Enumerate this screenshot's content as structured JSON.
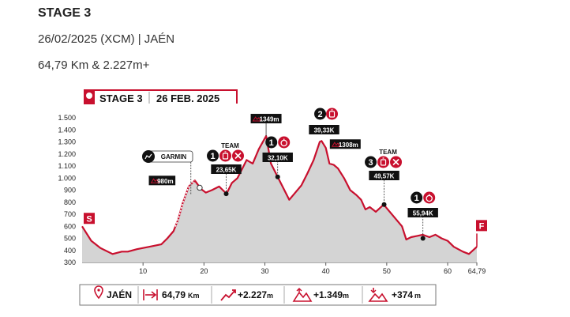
{
  "header": {
    "title": "STAGE 3",
    "date_line": "26/02/2025 (XCM) | JAÉN",
    "summary_line": "64,79 Km & 2.227m+"
  },
  "colors": {
    "accent": "#c8102e",
    "fill": "#d4d4d4",
    "dark": "#111111"
  },
  "chart_data": {
    "type": "area",
    "banner": {
      "stage": "STAGE 3",
      "date": "26 FEB. 2025"
    },
    "xlim": [
      0,
      64.79
    ],
    "ylim": [
      300,
      1500
    ],
    "x_ticks": [
      "10",
      "20",
      "30",
      "40",
      "50",
      "60",
      "64,79"
    ],
    "x_tick_values": [
      10,
      20,
      30,
      40,
      50,
      60,
      64.79
    ],
    "y_ticks": [
      "300",
      "400",
      "500",
      "600",
      "700",
      "800",
      "900",
      "1.000",
      "1.100",
      "1.200",
      "1.300",
      "1.400",
      "1.500"
    ],
    "y_tick_values": [
      300,
      400,
      500,
      600,
      700,
      800,
      900,
      1000,
      1100,
      1200,
      1300,
      1400,
      1500
    ],
    "profile": {
      "x": [
        0,
        1.5,
        3,
        5,
        6.5,
        7.5,
        9,
        11,
        13,
        14,
        15,
        15.8,
        16.5,
        17.5,
        18.5,
        19.5,
        20.3,
        21.3,
        22.5,
        23.7,
        24.6,
        25.5,
        26.3,
        27,
        28,
        29,
        30.2,
        31,
        32.1,
        33.2,
        34,
        35,
        36,
        37,
        38,
        39,
        39.3,
        40,
        40.6,
        41.3,
        42,
        43,
        44,
        45,
        45.8,
        46.5,
        47.2,
        48.2,
        49.5,
        50.5,
        52.5,
        53.2,
        54,
        55,
        55.9,
        57,
        58,
        59,
        60,
        61,
        62.5,
        63.5,
        64.79
      ],
      "y": [
        600,
        480,
        420,
        370,
        390,
        390,
        410,
        430,
        450,
        500,
        560,
        660,
        790,
        930,
        980,
        910,
        880,
        900,
        930,
        870,
        960,
        1000,
        1080,
        1150,
        1120,
        1240,
        1349,
        1120,
        1010,
        900,
        820,
        880,
        940,
        1040,
        1150,
        1300,
        1308,
        1250,
        1120,
        1110,
        1080,
        1000,
        900,
        860,
        820,
        740,
        760,
        720,
        780,
        720,
        600,
        490,
        510,
        520,
        530,
        510,
        530,
        500,
        480,
        430,
        390,
        370,
        430
      ]
    },
    "dotted_segment": [
      15.3,
      18.5
    ],
    "start_label": "S",
    "finish_label": "F",
    "annotations": [
      {
        "type": "summit",
        "x": 30.2,
        "y": 1349,
        "label": "1349m"
      },
      {
        "type": "summit",
        "x": 40.6,
        "y": 1308,
        "label": "1308m"
      },
      {
        "type": "summit",
        "x": 16.5,
        "y": 980,
        "label": "980m"
      },
      {
        "type": "garmin",
        "x": 18.5,
        "y": 980,
        "label": "GARMIN"
      },
      {
        "type": "feed-zone",
        "number": "1",
        "x": 23.65,
        "y": 870,
        "km": "23,65K",
        "tag": "TEAM"
      },
      {
        "type": "timed",
        "number": "1",
        "x": 32.1,
        "y": 1010,
        "km": "32,10K"
      },
      {
        "type": "feed",
        "number": "2",
        "x": 39.33,
        "y": 1300,
        "km": "39,33K"
      },
      {
        "type": "feed-zone",
        "number": "3",
        "x": 49.57,
        "y": 780,
        "km": "49,57K",
        "tag": "TEAM"
      },
      {
        "type": "timed",
        "number": "1",
        "x": 55.94,
        "y": 500,
        "km": "55,94K"
      }
    ]
  },
  "stats": {
    "location": "JAÉN",
    "distance": "64,79",
    "distance_unit": "Km",
    "climb": "+2.227",
    "climb_unit": "m",
    "max_alt": "+1.349",
    "max_alt_unit": "m",
    "min_alt": "+374",
    "min_alt_unit": "m"
  }
}
